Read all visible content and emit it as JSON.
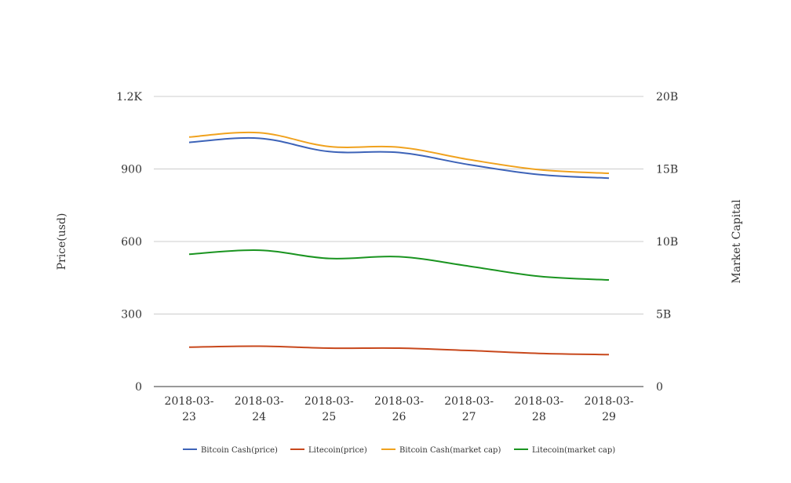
{
  "chart_data": {
    "type": "line",
    "categories": [
      "2018-03-23",
      "2018-03-24",
      "2018-03-25",
      "2018-03-26",
      "2018-03-27",
      "2018-03-28",
      "2018-03-29"
    ],
    "category_lines": [
      [
        "2018-03-",
        "23"
      ],
      [
        "2018-03-",
        "24"
      ],
      [
        "2018-03-",
        "25"
      ],
      [
        "2018-03-",
        "26"
      ],
      [
        "2018-03-",
        "27"
      ],
      [
        "2018-03-",
        "28"
      ],
      [
        "2018-03-",
        "29"
      ]
    ],
    "y_left": {
      "label": "Price(usd)",
      "range": [
        0,
        1200
      ],
      "ticks": [
        0,
        300,
        600,
        900,
        1200
      ],
      "tick_labels": [
        "0",
        "300",
        "600",
        "900",
        "1.2K"
      ]
    },
    "y_right": {
      "label": "Market Capital",
      "range": [
        0,
        20000000000
      ],
      "ticks": [
        0,
        5000000000,
        10000000000,
        15000000000,
        20000000000
      ],
      "tick_labels": [
        "0",
        "5B",
        "10B",
        "15B",
        "20B"
      ]
    },
    "grid": true,
    "legend_position": "bottom",
    "series": [
      {
        "name": "Bitcoin Cash(price)",
        "axis": "left",
        "color": "#3d63b8",
        "values": [
          1010,
          1027,
          972,
          968,
          918,
          877,
          862
        ]
      },
      {
        "name": "Litecoin(price)",
        "axis": "left",
        "color": "#c8481c",
        "values": [
          163,
          167,
          159,
          159,
          149,
          137,
          132
        ]
      },
      {
        "name": "Bitcoin Cash(market cap)",
        "axis": "right",
        "color": "#f0a21e",
        "values": [
          17200000000,
          17500000000,
          16550000000,
          16500000000,
          15650000000,
          14950000000,
          14700000000
        ]
      },
      {
        "name": "Litecoin(market cap)",
        "axis": "right",
        "color": "#1a9420",
        "values": [
          9120000000,
          9400000000,
          8830000000,
          8950000000,
          8300000000,
          7600000000,
          7350000000
        ]
      }
    ]
  }
}
